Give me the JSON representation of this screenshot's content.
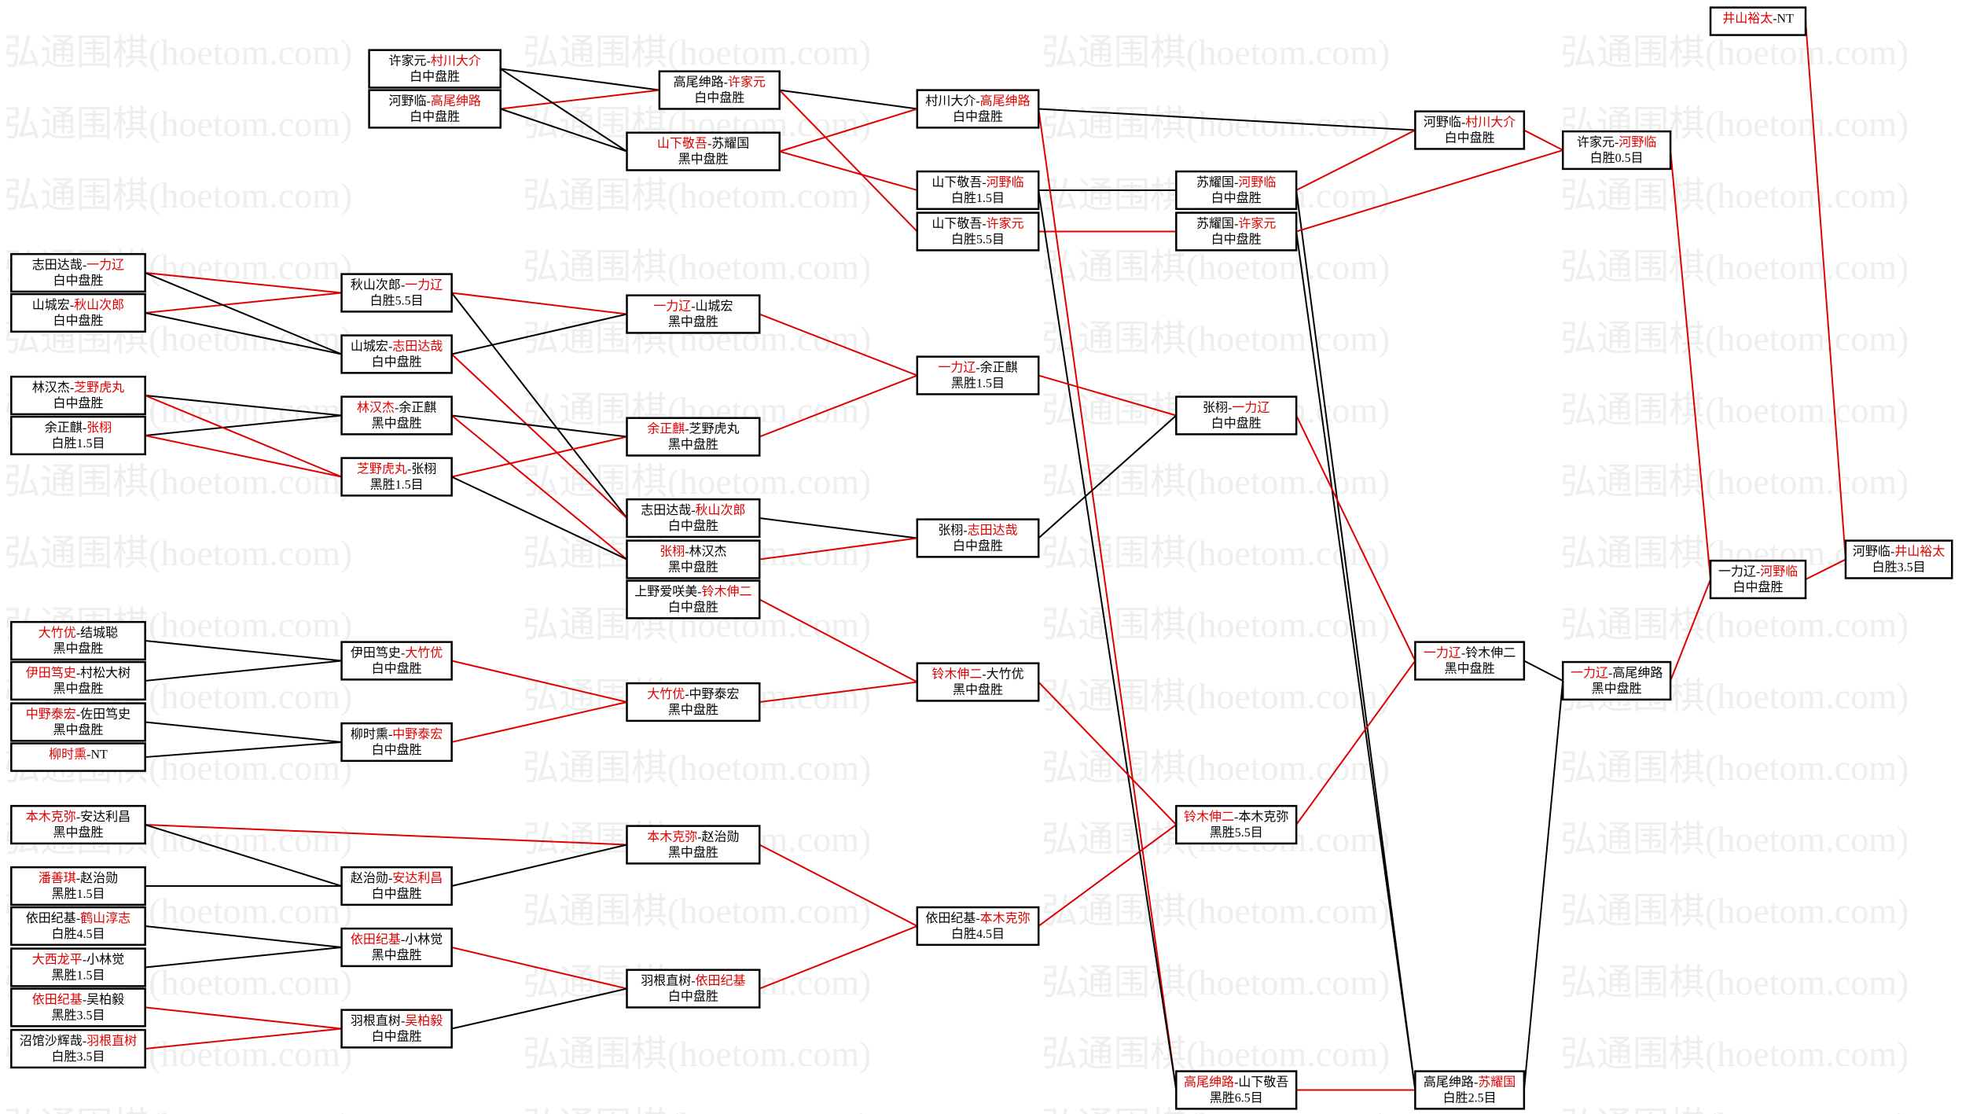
{
  "watermark": "弘通围棋(hoetom.com)",
  "separator": "-",
  "highlight_color": "#e00000",
  "nodes": [
    {
      "players": [
        "志田达哉",
        "一力辽"
      ],
      "highlight": 1,
      "result": "白中盘胜"
    },
    {
      "players": [
        "山城宏",
        "秋山次郎"
      ],
      "highlight": 1,
      "result": "白中盘胜"
    },
    {
      "players": [
        "林汉杰",
        "芝野虎丸"
      ],
      "highlight": 1,
      "result": "白中盘胜"
    },
    {
      "players": [
        "余正麒",
        "张栩"
      ],
      "highlight": 1,
      "result": "白胜1.5目"
    },
    {
      "players": [
        "大竹优",
        "结城聪"
      ],
      "highlight": 0,
      "result": "黑中盘胜"
    },
    {
      "players": [
        "伊田笃史",
        "村松大树"
      ],
      "highlight": 0,
      "result": "黑中盘胜"
    },
    {
      "players": [
        "中野泰宏",
        "佐田笃史"
      ],
      "highlight": 0,
      "result": "黑中盘胜"
    },
    {
      "players": [
        "柳时熏",
        "NT"
      ],
      "highlight": 0
    },
    {
      "players": [
        "本木克弥",
        "安达利昌"
      ],
      "highlight": 0,
      "result": "黑中盘胜"
    },
    {
      "players": [
        "潘善琪",
        "赵治勋"
      ],
      "highlight": 0,
      "result": "黑胜1.5目"
    },
    {
      "players": [
        "依田纪基",
        "鹤山淳志"
      ],
      "highlight": 1,
      "result": "白胜4.5目"
    },
    {
      "players": [
        "大西龙平",
        "小林觉"
      ],
      "highlight": 0,
      "result": "黑胜1.5目"
    },
    {
      "players": [
        "依田纪基",
        "吴柏毅"
      ],
      "highlight": 0,
      "result": "黑胜3.5目"
    },
    {
      "players": [
        "沼馆沙辉哉",
        "羽根直树"
      ],
      "highlight": 1,
      "result": "白胜3.5目"
    },
    {
      "players": [
        "秋山次郎",
        "一力辽"
      ],
      "highlight": 1,
      "result": "白胜5.5目"
    },
    {
      "players": [
        "山城宏",
        "志田达哉"
      ],
      "highlight": 1,
      "result": "白中盘胜"
    },
    {
      "players": [
        "林汉杰",
        "余正麒"
      ],
      "highlight": 0,
      "result": "黑中盘胜"
    },
    {
      "players": [
        "芝野虎丸",
        "张栩"
      ],
      "highlight": 0,
      "result": "黑胜1.5目"
    },
    {
      "players": [
        "伊田笃史",
        "大竹优"
      ],
      "highlight": 1,
      "result": "白中盘胜"
    },
    {
      "players": [
        "柳时熏",
        "中野泰宏"
      ],
      "highlight": 1,
      "result": "白中盘胜"
    },
    {
      "players": [
        "赵治勋",
        "安达利昌"
      ],
      "highlight": 1,
      "result": "白中盘胜"
    },
    {
      "players": [
        "依田纪基",
        "小林觉"
      ],
      "highlight": 0,
      "result": "黑中盘胜"
    },
    {
      "players": [
        "羽根直树",
        "吴柏毅"
      ],
      "highlight": 1,
      "result": "白中盘胜"
    },
    {
      "players": [
        "许家元",
        "村川大介"
      ],
      "highlight": 1,
      "result": "白中盘胜"
    },
    {
      "players": [
        "河野临",
        "高尾绅路"
      ],
      "highlight": 1,
      "result": "白中盘胜"
    },
    {
      "players": [
        "高尾绅路",
        "许家元"
      ],
      "highlight": 1,
      "result": "白中盘胜"
    },
    {
      "players": [
        "山下敬吾",
        "苏耀国"
      ],
      "highlight": 0,
      "result": "黑中盘胜"
    },
    {
      "players": [
        "一力辽",
        "山城宏"
      ],
      "highlight": 0,
      "result": "黑中盘胜"
    },
    {
      "players": [
        "余正麒",
        "芝野虎丸"
      ],
      "highlight": 0,
      "result": "黑中盘胜"
    },
    {
      "players": [
        "志田达哉",
        "秋山次郎"
      ],
      "highlight": 1,
      "result": "白中盘胜"
    },
    {
      "players": [
        "张栩",
        "林汉杰"
      ],
      "highlight": 0,
      "result": "黑中盘胜"
    },
    {
      "players": [
        "上野爱咲美",
        "铃木伸二"
      ],
      "highlight": 1,
      "result": "白中盘胜"
    },
    {
      "players": [
        "大竹优",
        "中野泰宏"
      ],
      "highlight": 0,
      "result": "黑中盘胜"
    },
    {
      "players": [
        "本木克弥",
        "赵治勋"
      ],
      "highlight": 0,
      "result": "黑中盘胜"
    },
    {
      "players": [
        "羽根直树",
        "依田纪基"
      ],
      "highlight": 1,
      "result": "白中盘胜"
    },
    {
      "players": [
        "村川大介",
        "高尾绅路"
      ],
      "highlight": 1,
      "result": "白中盘胜"
    },
    {
      "players": [
        "山下敬吾",
        "河野临"
      ],
      "highlight": 1,
      "result": "白胜1.5目"
    },
    {
      "players": [
        "山下敬吾",
        "许家元"
      ],
      "highlight": 1,
      "result": "白胜5.5目"
    },
    {
      "players": [
        "一力辽",
        "余正麒"
      ],
      "highlight": 0,
      "result": "黑胜1.5目"
    },
    {
      "players": [
        "张栩",
        "志田达哉"
      ],
      "highlight": 1,
      "result": "白中盘胜"
    },
    {
      "players": [
        "铃木伸二",
        "大竹优"
      ],
      "highlight": 0,
      "result": "黑中盘胜"
    },
    {
      "players": [
        "依田纪基",
        "本木克弥"
      ],
      "highlight": 1,
      "result": "白胜4.5目"
    },
    {
      "players": [
        "苏耀国",
        "河野临"
      ],
      "highlight": 1,
      "result": "白中盘胜"
    },
    {
      "players": [
        "苏耀国",
        "许家元"
      ],
      "highlight": 1,
      "result": "白中盘胜"
    },
    {
      "players": [
        "张栩",
        "一力辽"
      ],
      "highlight": 1,
      "result": "白中盘胜"
    },
    {
      "players": [
        "铃木伸二",
        "本木克弥"
      ],
      "highlight": 0,
      "result": "黑胜5.5目"
    },
    {
      "players": [
        "高尾绅路",
        "山下敬吾"
      ],
      "highlight": 0,
      "result": "黑胜6.5目"
    },
    {
      "players": [
        "河野临",
        "村川大介"
      ],
      "highlight": 1,
      "result": "白中盘胜"
    },
    {
      "players": [
        "一力辽",
        "铃木伸二"
      ],
      "highlight": 0,
      "result": "黑中盘胜"
    },
    {
      "players": [
        "高尾绅路",
        "苏耀国"
      ],
      "highlight": 1,
      "result": "白胜2.5目"
    },
    {
      "players": [
        "许家元",
        "河野临"
      ],
      "highlight": 1,
      "result": "白胜0.5目"
    },
    {
      "players": [
        "一力辽",
        "高尾绅路"
      ],
      "highlight": 0,
      "result": "黑中盘胜"
    },
    {
      "players": [
        "井山裕太",
        "NT"
      ],
      "highlight": 0
    },
    {
      "players": [
        "一力辽",
        "河野临"
      ],
      "highlight": 1,
      "result": "白中盘胜"
    },
    {
      "players": [
        "河野临",
        "井山裕太"
      ],
      "highlight": 1,
      "result": "白胜3.5目"
    }
  ]
}
